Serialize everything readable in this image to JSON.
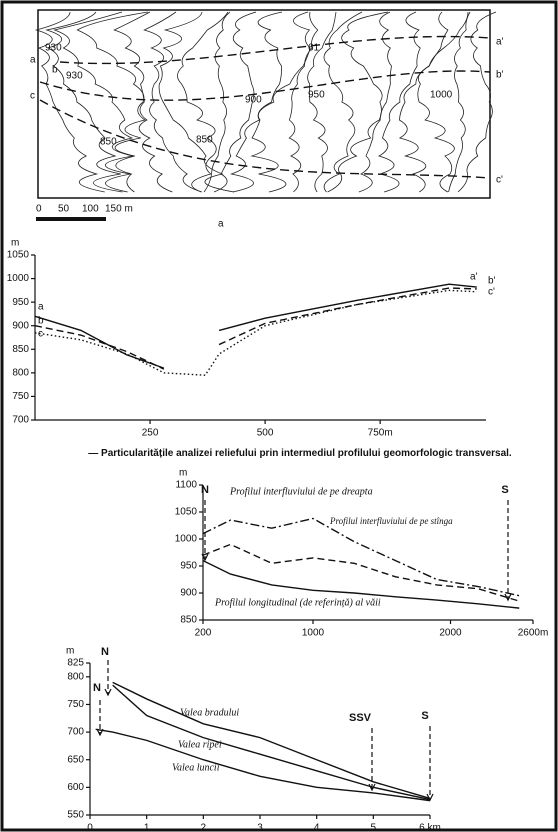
{
  "map": {
    "labels": [
      "a",
      "b",
      "c",
      "930",
      "930",
      "850",
      "850",
      "900",
      "950",
      "1000",
      "61",
      "a'",
      "b'",
      "c'"
    ],
    "scale": [
      "0",
      "50",
      "100",
      "150 m"
    ],
    "figure_label": "a"
  },
  "caption": "— Particularitățile analizei reliefului prin intermediul profilului geomorfologic transversal.",
  "chart_data": [
    {
      "type": "line",
      "y_label": "m",
      "xlim": [
        0,
        980
      ],
      "ylim": [
        700,
        1050
      ],
      "xticks": [
        250,
        500,
        {
          "value": 750,
          "label": "750m"
        }
      ],
      "yticks": [
        700,
        750,
        800,
        850,
        900,
        950,
        1000,
        1050
      ],
      "x": [
        0,
        100,
        200,
        280,
        370,
        400,
        500,
        700,
        900,
        960
      ],
      "series": [
        {
          "name": "a",
          "end_label": "a'",
          "color": "#111",
          "style": "solid",
          "values": [
            920,
            890,
            838,
            810,
            null,
            890,
            916,
            954,
            988,
            982
          ]
        },
        {
          "name": "b",
          "end_label": "b'",
          "color": "#111",
          "style": "dashed",
          "values": [
            900,
            880,
            845,
            808,
            null,
            860,
            905,
            945,
            980,
            978
          ]
        },
        {
          "name": "c",
          "end_label": "c'",
          "color": "#111",
          "style": "dotted",
          "values": [
            885,
            870,
            840,
            800,
            795,
            840,
            900,
            945,
            975,
            972
          ]
        }
      ]
    },
    {
      "type": "line",
      "y_label": "m",
      "xlim": [
        200,
        2600
      ],
      "ylim": [
        850,
        1100
      ],
      "xticks": [
        200,
        1000,
        2000,
        {
          "value": 2600,
          "label": "2600m"
        }
      ],
      "yticks": [
        850,
        900,
        950,
        1000,
        1050,
        1100
      ],
      "x": [
        200,
        400,
        700,
        1000,
        1300,
        1600,
        1900,
        2200,
        2500
      ],
      "annotations": [
        "N",
        "S"
      ],
      "series": [
        {
          "name": "Profilul interfluviului de pe dreapta",
          "color": "#111",
          "style": "dashdot",
          "values": [
            1010,
            1035,
            1020,
            1038,
            995,
            960,
            925,
            912,
            895
          ]
        },
        {
          "name": "Profilul interfluviului de pe stînga",
          "color": "#111",
          "style": "dashed",
          "values": [
            970,
            990,
            955,
            965,
            955,
            930,
            915,
            908,
            885
          ]
        },
        {
          "name": "Profilul longitudinal (de referință) al văii",
          "color": "#111",
          "style": "solid",
          "values": [
            960,
            935,
            915,
            905,
            900,
            893,
            887,
            880,
            872
          ]
        }
      ]
    },
    {
      "type": "line",
      "y_label": "m",
      "xlim": [
        0,
        6
      ],
      "ylim": [
        550,
        825
      ],
      "xticks": [
        0,
        1,
        2,
        3,
        4,
        5,
        {
          "value": 6,
          "label": "6 km"
        }
      ],
      "yticks": [
        550,
        600,
        650,
        700,
        750,
        800,
        825
      ],
      "x": [
        0.1,
        0.4,
        1,
        2,
        3,
        4,
        5,
        6
      ],
      "annotations": [
        "N",
        "N",
        "SSV",
        "S"
      ],
      "series": [
        {
          "name": "Valea bradului",
          "color": "#111",
          "style": "solid",
          "values": [
            null,
            790,
            760,
            715,
            690,
            650,
            610,
            580
          ]
        },
        {
          "name": "Valea ripei",
          "color": "#111",
          "style": "solid",
          "values": [
            null,
            785,
            730,
            690,
            660,
            630,
            600,
            578
          ]
        },
        {
          "name": "Valea luncii",
          "color": "#111",
          "style": "solid",
          "values": [
            705,
            700,
            685,
            650,
            620,
            600,
            590,
            576
          ]
        }
      ]
    }
  ]
}
